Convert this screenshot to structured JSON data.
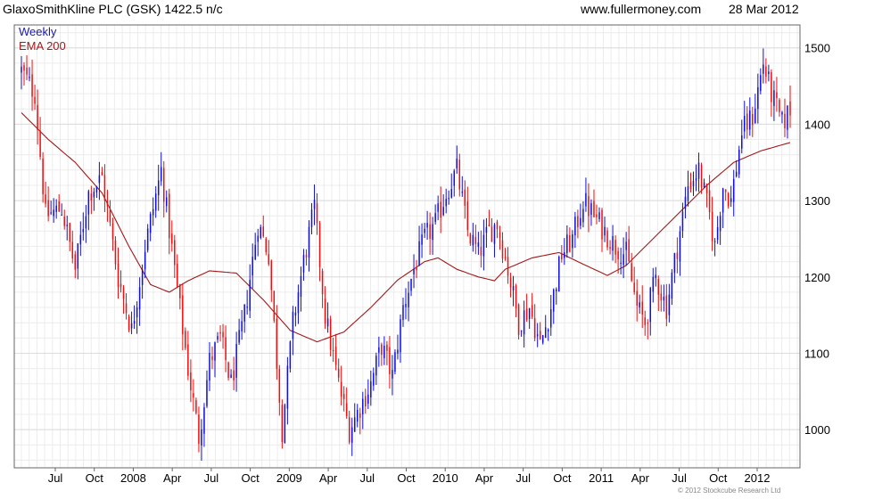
{
  "header": {
    "title": "GlaxoSmithKline PLC (GSK) 1422.5 n/c",
    "site": "www.fullermoney.com",
    "date": "28 Mar 2012"
  },
  "legend": {
    "weekly": "Weekly",
    "ema": "EMA 200"
  },
  "footer": {
    "copyright": "© 2012 Stockcube Research Ltd"
  },
  "colors": {
    "up": "#1010d8",
    "down": "#ee1010",
    "ema": "#a01818",
    "grid": "#dcdcdc"
  },
  "chart_data": {
    "type": "candlestick",
    "title": "GlaxoSmithKline PLC (GSK) 1422.5 n/c",
    "xlabel": "",
    "ylabel": "",
    "ylim": [
      950,
      1530
    ],
    "y_ticks": [
      1000,
      1100,
      1200,
      1300,
      1400,
      1500
    ],
    "x_ticks": [
      "Jul",
      "Oct",
      "2008",
      "Apr",
      "Jul",
      "Oct",
      "2009",
      "Apr",
      "Jul",
      "Oct",
      "2010",
      "Apr",
      "Jul",
      "Oct",
      "2011",
      "Apr",
      "Jul",
      "Oct",
      "2012"
    ],
    "grid": true,
    "legend_position": "top-left",
    "anchors": [
      [
        0,
        1470
      ],
      [
        5,
        1440
      ],
      [
        9,
        1280
      ],
      [
        15,
        1290
      ],
      [
        20,
        1210
      ],
      [
        25,
        1310
      ],
      [
        30,
        1330
      ],
      [
        36,
        1200
      ],
      [
        41,
        1130
      ],
      [
        46,
        1240
      ],
      [
        52,
        1340
      ],
      [
        57,
        1210
      ],
      [
        62,
        1080
      ],
      [
        66,
        990
      ],
      [
        70,
        1090
      ],
      [
        74,
        1120
      ],
      [
        78,
        1060
      ],
      [
        83,
        1150
      ],
      [
        88,
        1270
      ],
      [
        92,
        1230
      ],
      [
        95,
        1090
      ],
      [
        97,
        1000
      ],
      [
        101,
        1140
      ],
      [
        105,
        1220
      ],
      [
        109,
        1290
      ],
      [
        113,
        1150
      ],
      [
        118,
        1060
      ],
      [
        122,
        1000
      ],
      [
        126,
        1030
      ],
      [
        130,
        1060
      ],
      [
        134,
        1110
      ],
      [
        138,
        1070
      ],
      [
        142,
        1160
      ],
      [
        146,
        1210
      ],
      [
        150,
        1250
      ],
      [
        154,
        1270
      ],
      [
        158,
        1310
      ],
      [
        162,
        1340
      ],
      [
        166,
        1260
      ],
      [
        170,
        1230
      ],
      [
        174,
        1260
      ],
      [
        177,
        1270
      ],
      [
        181,
        1210
      ],
      [
        185,
        1140
      ],
      [
        189,
        1160
      ],
      [
        193,
        1110
      ],
      [
        197,
        1160
      ],
      [
        201,
        1230
      ],
      [
        205,
        1250
      ],
      [
        209,
        1300
      ],
      [
        213,
        1280
      ],
      [
        217,
        1260
      ],
      [
        221,
        1240
      ],
      [
        225,
        1230
      ],
      [
        229,
        1160
      ],
      [
        232,
        1140
      ],
      [
        236,
        1200
      ],
      [
        240,
        1160
      ],
      [
        244,
        1240
      ],
      [
        248,
        1320
      ],
      [
        252,
        1340
      ],
      [
        256,
        1280
      ],
      [
        258,
        1240
      ],
      [
        261,
        1320
      ],
      [
        264,
        1300
      ],
      [
        268,
        1390
      ],
      [
        272,
        1410
      ],
      [
        276,
        1480
      ],
      [
        279,
        1440
      ],
      [
        283,
        1400
      ],
      [
        286,
        1420
      ]
    ],
    "ema_anchors": [
      [
        0,
        1415
      ],
      [
        10,
        1380
      ],
      [
        20,
        1350
      ],
      [
        30,
        1310
      ],
      [
        40,
        1240
      ],
      [
        48,
        1190
      ],
      [
        55,
        1180
      ],
      [
        62,
        1195
      ],
      [
        70,
        1208
      ],
      [
        80,
        1205
      ],
      [
        90,
        1170
      ],
      [
        100,
        1130
      ],
      [
        110,
        1115
      ],
      [
        120,
        1128
      ],
      [
        130,
        1160
      ],
      [
        140,
        1196
      ],
      [
        150,
        1220
      ],
      [
        155,
        1225
      ],
      [
        162,
        1210
      ],
      [
        170,
        1200
      ],
      [
        176,
        1195
      ],
      [
        180,
        1210
      ],
      [
        190,
        1225
      ],
      [
        200,
        1232
      ],
      [
        210,
        1215
      ],
      [
        218,
        1202
      ],
      [
        225,
        1215
      ],
      [
        235,
        1250
      ],
      [
        245,
        1285
      ],
      [
        255,
        1320
      ],
      [
        265,
        1350
      ],
      [
        275,
        1365
      ],
      [
        286,
        1376
      ]
    ]
  }
}
